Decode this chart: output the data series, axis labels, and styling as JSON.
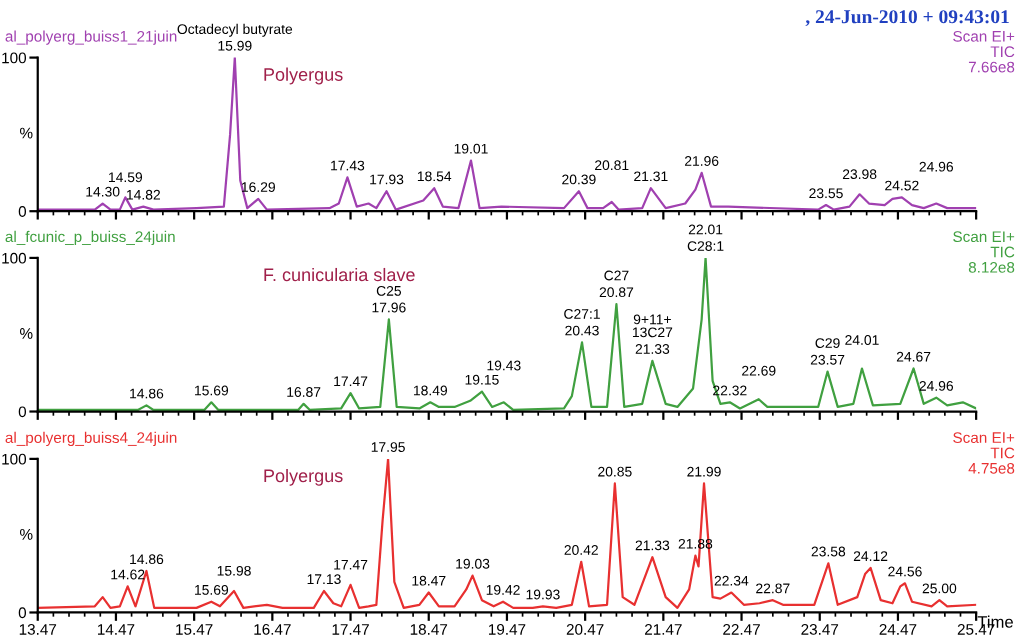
{
  "chart_data": [
    {
      "type": "line",
      "title": ", 24-Jun-2010 + 09:43:01",
      "xlim": [
        13.47,
        25.47
      ],
      "xticks": [
        13.47,
        14.47,
        15.47,
        16.47,
        17.47,
        18.47,
        19.47,
        20.47,
        21.47,
        22.47,
        23.47,
        24.47,
        25.47
      ],
      "ylim": [
        0,
        100
      ],
      "yticks": [
        0,
        100
      ],
      "ylabel": "%",
      "tick_labels": "y",
      "series": [
        {
          "color": "#a040b0",
          "x": [
            13.47,
            14.2,
            14.3,
            14.4,
            14.52,
            14.59,
            14.68,
            14.82,
            14.95,
            15.5,
            15.85,
            15.93,
            15.99,
            16.06,
            16.15,
            16.29,
            16.4,
            17.2,
            17.32,
            17.43,
            17.55,
            17.7,
            17.8,
            17.93,
            18.05,
            18.4,
            18.54,
            18.65,
            18.85,
            19.01,
            19.12,
            19.4,
            20.2,
            20.39,
            20.5,
            20.7,
            20.81,
            20.9,
            21.2,
            21.31,
            21.5,
            21.75,
            21.88,
            21.96,
            22.08,
            22.3,
            23.45,
            23.55,
            23.65,
            23.85,
            23.98,
            24.1,
            24.3,
            24.4,
            24.52,
            24.65,
            24.8,
            24.96,
            25.1,
            25.47
          ],
          "values": [
            1,
            1,
            5,
            1,
            1,
            9,
            1,
            3,
            1,
            2,
            3,
            50,
            100,
            20,
            2,
            8,
            1,
            2,
            5,
            22,
            3,
            5,
            2,
            13,
            1,
            7,
            15,
            3,
            2,
            33,
            2,
            3,
            2,
            13,
            2,
            2,
            6,
            1,
            2,
            15,
            2,
            5,
            14,
            25,
            3,
            3,
            1,
            4,
            1,
            3,
            11,
            5,
            4,
            8,
            9,
            4,
            2,
            5,
            2,
            2
          ]
        }
      ],
      "annotations": [
        "al_polyerg_buiss1_21juin",
        "Scan EI+",
        "TIC",
        "7.66e8",
        "Polyergus",
        {
          "text": "14.30",
          "x": 14.3,
          "y": 5
        },
        {
          "text": "14.59",
          "x": 14.59,
          "y": 9
        },
        {
          "text": "14.82",
          "x": 14.82,
          "y": 3
        },
        {
          "text": "15.99",
          "x": 15.99,
          "y": 100
        },
        {
          "text": "Octadecyl butyrate",
          "x": 15.99,
          "y": 100
        },
        {
          "text": "16.29",
          "x": 16.29,
          "y": 8
        },
        {
          "text": "17.43",
          "x": 17.43,
          "y": 22
        },
        {
          "text": "17.93",
          "x": 17.93,
          "y": 13
        },
        {
          "text": "18.54",
          "x": 18.54,
          "y": 15
        },
        {
          "text": "19.01",
          "x": 19.01,
          "y": 33
        },
        {
          "text": "20.39",
          "x": 20.39,
          "y": 13
        },
        {
          "text": "20.81",
          "x": 20.81,
          "y": 6
        },
        {
          "text": "21.31",
          "x": 21.31,
          "y": 15
        },
        {
          "text": "21.96",
          "x": 21.96,
          "y": 25
        },
        {
          "text": "23.55",
          "x": 23.55,
          "y": 4
        },
        {
          "text": "23.98",
          "x": 23.98,
          "y": 11
        },
        {
          "text": "24.52",
          "x": 24.52,
          "y": 9
        },
        {
          "text": "24.96",
          "x": 24.96,
          "y": 5
        }
      ]
    },
    {
      "type": "line",
      "xlim": [
        13.47,
        25.47
      ],
      "xticks": [
        13.47,
        14.47,
        15.47,
        16.47,
        17.47,
        18.47,
        19.47,
        20.47,
        21.47,
        22.47,
        23.47,
        24.47,
        25.47
      ],
      "ylim": [
        0,
        100
      ],
      "yticks": [
        0,
        100
      ],
      "ylabel": "%",
      "tick_labels": "y",
      "series": [
        {
          "color": "#40a040",
          "x": [
            13.47,
            14.75,
            14.86,
            14.95,
            15.6,
            15.69,
            15.78,
            16.8,
            16.87,
            16.95,
            17.35,
            17.47,
            17.58,
            17.85,
            17.96,
            18.06,
            18.35,
            18.49,
            18.6,
            18.8,
            19.0,
            19.15,
            19.28,
            19.43,
            19.55,
            20.2,
            20.3,
            20.43,
            20.55,
            20.75,
            20.87,
            20.97,
            21.2,
            21.33,
            21.5,
            21.65,
            21.85,
            21.96,
            22.01,
            22.1,
            22.2,
            22.32,
            22.45,
            22.69,
            22.8,
            23.45,
            23.57,
            23.7,
            23.9,
            24.01,
            24.15,
            24.5,
            24.67,
            24.8,
            24.96,
            25.1,
            25.3,
            25.47
          ],
          "values": [
            1,
            1,
            4,
            1,
            1,
            6,
            1,
            1,
            5,
            1,
            2,
            12,
            2,
            3,
            60,
            3,
            2,
            6,
            3,
            3,
            7,
            13,
            3,
            6,
            1,
            2,
            10,
            45,
            3,
            3,
            70,
            3,
            5,
            33,
            5,
            3,
            15,
            60,
            100,
            20,
            5,
            6,
            2,
            8,
            3,
            3,
            26,
            3,
            5,
            28,
            4,
            5,
            28,
            5,
            9,
            4,
            6,
            2
          ]
        }
      ],
      "annotations": [
        "al_fcunic_p_buiss_24juin",
        "Scan EI+",
        "TIC",
        "8.12e8",
        "F. cunicularia slave",
        {
          "text": "C28:1",
          "x": 22.01,
          "y": 100
        },
        {
          "text": "14.86",
          "x": 14.86,
          "y": 4
        },
        {
          "text": "15.69",
          "x": 15.69,
          "y": 6
        },
        {
          "text": "16.87",
          "x": 16.87,
          "y": 5
        },
        {
          "text": "17.47",
          "x": 17.47,
          "y": 12
        },
        {
          "text": "17.96",
          "x": 17.96,
          "y": 60
        },
        {
          "text": "C25",
          "x": 17.96,
          "y": 60
        },
        {
          "text": "18.49",
          "x": 18.49,
          "y": 6
        },
        {
          "text": "19.15",
          "x": 19.15,
          "y": 13
        },
        {
          "text": "19.43",
          "x": 19.43,
          "y": 6
        },
        {
          "text": "20.43",
          "x": 20.43,
          "y": 45
        },
        {
          "text": "C27:1",
          "x": 20.43,
          "y": 45
        },
        {
          "text": "20.87",
          "x": 20.87,
          "y": 70
        },
        {
          "text": "C27",
          "x": 20.87,
          "y": 70
        },
        {
          "text": "21.33",
          "x": 21.33,
          "y": 33
        },
        {
          "text": "9+11+\n13C27",
          "x": 21.33,
          "y": 33
        },
        {
          "text": "22.01",
          "x": 22.01,
          "y": 100
        },
        {
          "text": "22.32",
          "x": 22.32,
          "y": 6
        },
        {
          "text": "22.69",
          "x": 22.69,
          "y": 8
        },
        {
          "text": "23.57",
          "x": 23.57,
          "y": 26
        },
        {
          "text": "C29",
          "x": 23.57,
          "y": 26
        },
        {
          "text": "24.01",
          "x": 24.01,
          "y": 28
        },
        {
          "text": "24.67",
          "x": 24.67,
          "y": 28
        },
        {
          "text": "24.96",
          "x": 24.96,
          "y": 9
        }
      ]
    },
    {
      "type": "line",
      "xlabel": "Time",
      "xlim": [
        13.47,
        25.47
      ],
      "xticks": [
        13.47,
        14.47,
        15.47,
        16.47,
        17.47,
        18.47,
        19.47,
        20.47,
        21.47,
        22.47,
        23.47,
        24.47,
        25.47
      ],
      "ylim": [
        0,
        100
      ],
      "yticks": [
        0,
        100
      ],
      "ylabel": "%",
      "series": [
        {
          "color": "#e83030",
          "x": [
            13.47,
            14.2,
            14.3,
            14.4,
            14.52,
            14.62,
            14.72,
            14.86,
            14.96,
            15.5,
            15.69,
            15.8,
            15.98,
            16.1,
            16.4,
            16.6,
            17.0,
            17.13,
            17.25,
            17.35,
            17.47,
            17.58,
            17.7,
            17.8,
            17.88,
            17.95,
            18.03,
            18.15,
            18.35,
            18.47,
            18.6,
            18.8,
            18.95,
            19.03,
            19.15,
            19.3,
            19.42,
            19.55,
            19.8,
            19.93,
            20.1,
            20.3,
            20.42,
            20.52,
            20.75,
            20.85,
            20.95,
            21.1,
            21.33,
            21.5,
            21.65,
            21.8,
            21.88,
            21.92,
            21.99,
            22.1,
            22.2,
            22.34,
            22.5,
            22.7,
            22.87,
            23.0,
            23.4,
            23.58,
            23.7,
            23.95,
            24.05,
            24.12,
            24.25,
            24.4,
            24.5,
            24.56,
            24.65,
            24.9,
            25.0,
            25.1,
            25.47
          ],
          "values": [
            3,
            4,
            10,
            3,
            4,
            17,
            4,
            27,
            3,
            3,
            7,
            4,
            14,
            3,
            5,
            3,
            3,
            14,
            6,
            4,
            18,
            3,
            4,
            5,
            60,
            100,
            20,
            3,
            5,
            13,
            4,
            4,
            15,
            24,
            8,
            4,
            7,
            3,
            3,
            4,
            3,
            5,
            33,
            4,
            5,
            84,
            10,
            5,
            36,
            10,
            3,
            15,
            37,
            30,
            84,
            10,
            9,
            13,
            5,
            6,
            8,
            5,
            5,
            32,
            5,
            10,
            25,
            29,
            8,
            6,
            17,
            19,
            7,
            4,
            8,
            4,
            5
          ]
        }
      ],
      "annotations": [
        "al_polyerg_buiss4_24juin",
        "Scan EI+",
        "TIC",
        "4.75e8",
        "Polyergus",
        {
          "text": "14.62",
          "x": 14.62,
          "y": 17
        },
        {
          "text": "14.86",
          "x": 14.86,
          "y": 27
        },
        {
          "text": "15.69",
          "x": 15.69,
          "y": 7
        },
        {
          "text": "15.98",
          "x": 15.98,
          "y": 14
        },
        {
          "text": "17.13",
          "x": 17.13,
          "y": 14
        },
        {
          "text": "17.47",
          "x": 17.47,
          "y": 18
        },
        {
          "text": "17.95",
          "x": 17.95,
          "y": 100
        },
        {
          "text": "18.47",
          "x": 18.47,
          "y": 13
        },
        {
          "text": "19.03",
          "x": 19.03,
          "y": 24
        },
        {
          "text": "19.42",
          "x": 19.42,
          "y": 7
        },
        {
          "text": "19.93",
          "x": 19.93,
          "y": 4
        },
        {
          "text": "20.42",
          "x": 20.42,
          "y": 33
        },
        {
          "text": "20.85",
          "x": 20.85,
          "y": 84
        },
        {
          "text": "21.33",
          "x": 21.33,
          "y": 36
        },
        {
          "text": "21.88",
          "x": 21.88,
          "y": 37
        },
        {
          "text": "21.99",
          "x": 21.99,
          "y": 84
        },
        {
          "text": "22.34",
          "x": 22.34,
          "y": 13
        },
        {
          "text": "22.87",
          "x": 22.87,
          "y": 8
        },
        {
          "text": "23.58",
          "x": 23.58,
          "y": 32
        },
        {
          "text": "24.12",
          "x": 24.12,
          "y": 29
        },
        {
          "text": "24.56",
          "x": 24.56,
          "y": 19
        },
        {
          "text": "25.00",
          "x": 25.0,
          "y": 8
        }
      ]
    }
  ]
}
